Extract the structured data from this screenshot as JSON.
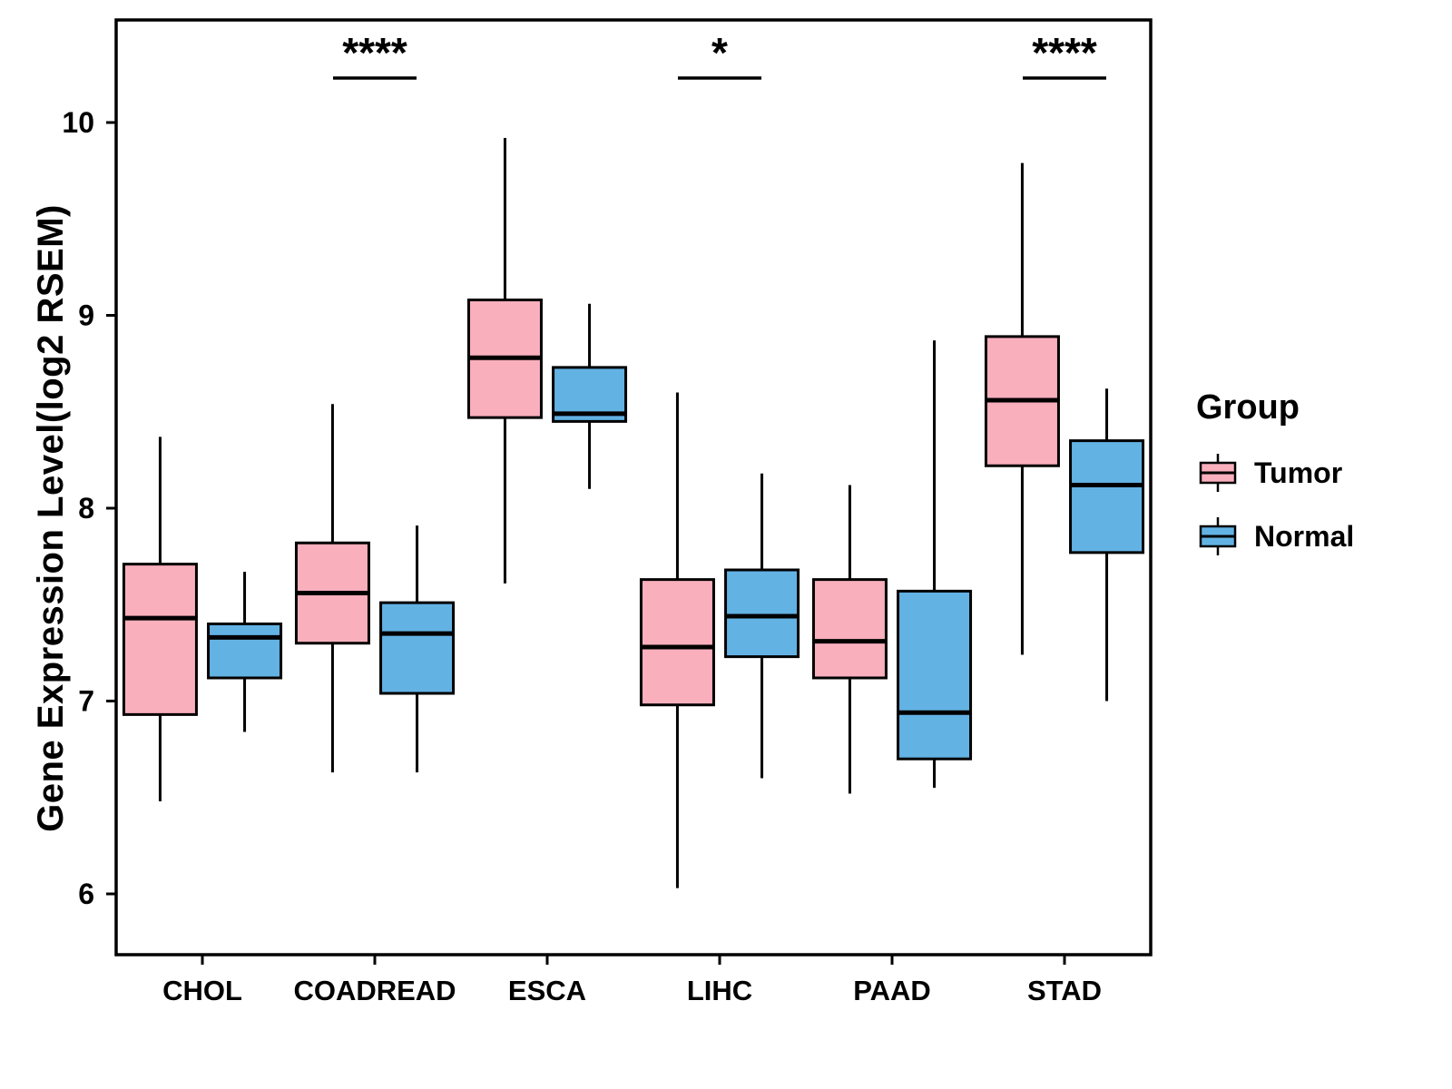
{
  "chart_data": {
    "type": "boxplot",
    "title": "",
    "ylabel": "Gene Expression Level(log2 RSEM)",
    "xlabel": "",
    "ylim": [
      5.7,
      10.55
    ],
    "yticks": [
      6,
      7,
      8,
      9,
      10
    ],
    "categories": [
      "CHOL",
      "COADREAD",
      "ESCA",
      "LIHC",
      "PAAD",
      "STAD"
    ],
    "box_stats_order": [
      "whisker_low",
      "q1",
      "median",
      "q3",
      "whisker_high"
    ],
    "series": [
      {
        "name": "Tumor",
        "color": "#F9AFBC",
        "boxes": [
          [
            6.48,
            6.93,
            7.43,
            7.71,
            8.37
          ],
          [
            6.63,
            7.3,
            7.56,
            7.82,
            8.54
          ],
          [
            7.61,
            8.47,
            8.78,
            9.08,
            9.92
          ],
          [
            6.03,
            6.98,
            7.28,
            7.63,
            8.6
          ],
          [
            6.52,
            7.12,
            7.31,
            7.63,
            8.12
          ],
          [
            7.24,
            8.22,
            8.56,
            8.89,
            9.79
          ]
        ]
      },
      {
        "name": "Normal",
        "color": "#63B2E4",
        "boxes": [
          [
            6.84,
            7.12,
            7.33,
            7.4,
            7.67
          ],
          [
            6.63,
            7.04,
            7.35,
            7.51,
            7.91
          ],
          [
            8.1,
            8.45,
            8.49,
            8.73,
            9.06
          ],
          [
            6.6,
            7.23,
            7.44,
            7.68,
            8.18
          ],
          [
            6.55,
            6.7,
            6.94,
            7.57,
            8.87
          ],
          [
            7.0,
            7.77,
            8.12,
            8.35,
            8.62
          ]
        ]
      }
    ],
    "significance": [
      {
        "category": "COADREAD",
        "label": "****"
      },
      {
        "category": "LIHC",
        "label": "*"
      },
      {
        "category": "STAD",
        "label": "****"
      }
    ],
    "legend": {
      "title": "Group",
      "position": "right",
      "entries": [
        {
          "label": "Tumor",
          "color": "#F9AFBC"
        },
        {
          "label": "Normal",
          "color": "#63B2E4"
        }
      ]
    },
    "grid": false
  }
}
